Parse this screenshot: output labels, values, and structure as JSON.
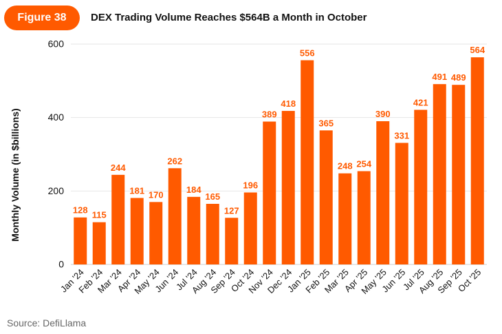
{
  "header": {
    "badge": "Figure 38",
    "title": "DEX Trading Volume Reaches $564B a Month in October"
  },
  "footer": {
    "source": "Source: DefiLlama"
  },
  "colors": {
    "bar": "#ff5a00",
    "label": "#ff5a00",
    "axis_text": "#111111",
    "grid": "#e6e6e6"
  },
  "chart_data": {
    "type": "bar",
    "title": "DEX Trading Volume Reaches $564B a Month in October",
    "xlabel": "",
    "ylabel": "Monthly Volume (in $billions)",
    "ylim": [
      0,
      600
    ],
    "yticks": [
      0,
      200,
      400,
      600
    ],
    "grid": true,
    "categories": [
      "Jan '24",
      "Feb '24",
      "Mar '24",
      "Apr '24",
      "May '24",
      "Jun '24",
      "Jul '24",
      "Aug '24",
      "Sep '24",
      "Oct '24",
      "Nov '24",
      "Dec '24",
      "Jan '25",
      "Feb '25",
      "Mar '25",
      "Apr '25",
      "May '25",
      "Jun '25",
      "Jul '25",
      "Aug '25",
      "Sep '25",
      "Oct '25"
    ],
    "values": [
      128,
      115,
      244,
      181,
      170,
      262,
      184,
      165,
      127,
      196,
      389,
      418,
      556,
      365,
      248,
      254,
      390,
      331,
      421,
      491,
      489,
      564
    ]
  }
}
